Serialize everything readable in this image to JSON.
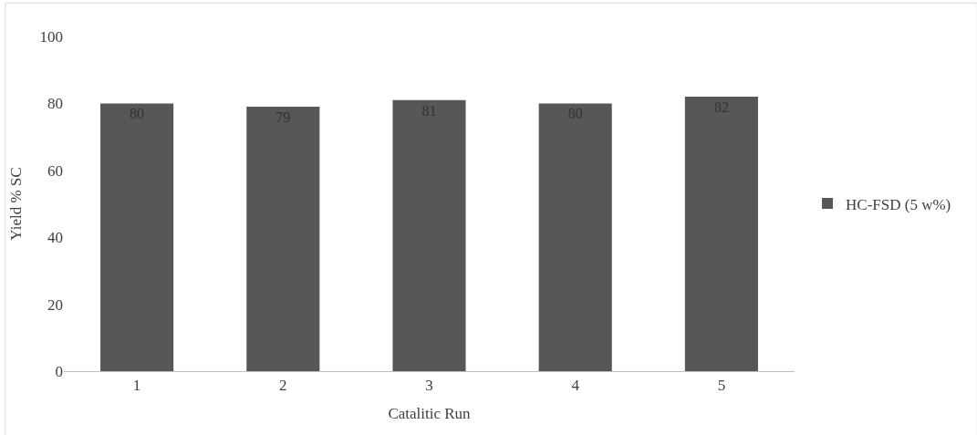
{
  "chart_data": {
    "type": "bar",
    "xlabel": "Catalitic Run",
    "ylabel": "Yield % SC",
    "categories": [
      "1",
      "2",
      "3",
      "4",
      "5"
    ],
    "series": [
      {
        "name": "HC-FSD (5 w%)",
        "color": "#575757",
        "values": [
          80,
          79,
          81,
          80,
          82
        ]
      }
    ],
    "ylim": [
      0,
      100
    ],
    "yticks": [
      0,
      20,
      40,
      60,
      80,
      100
    ],
    "grid": false,
    "legend": "right",
    "data_labels": true
  }
}
